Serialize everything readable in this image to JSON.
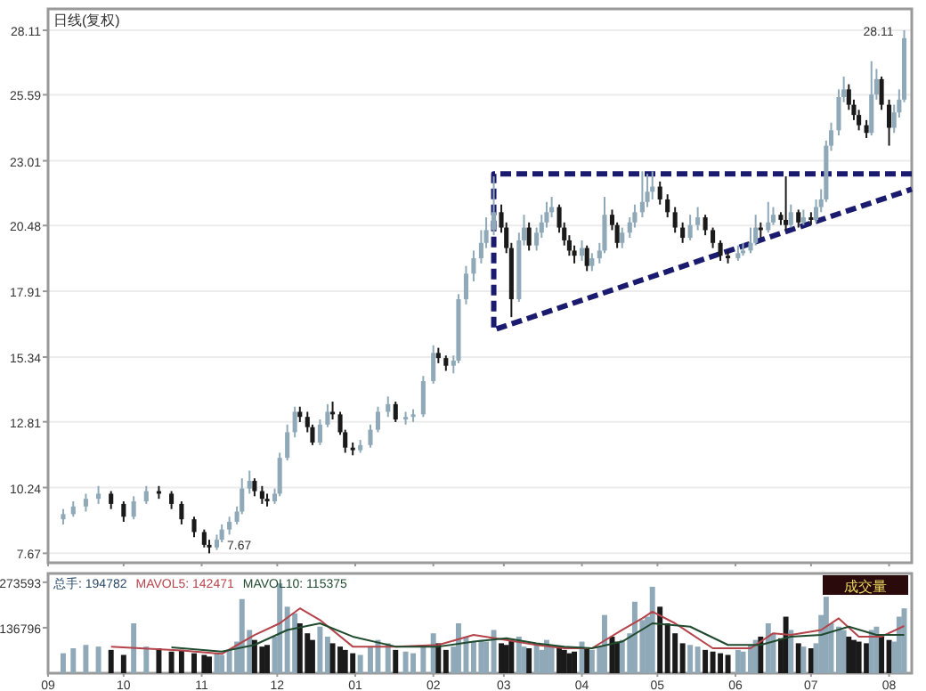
{
  "chart_data": [
    {
      "type": "candlestick",
      "title": "日线(复权)",
      "x": [
        "2009-09-07",
        "2009-09-11",
        "2009-09-16",
        "2009-09-21",
        "2009-09-26",
        "2009-10-01",
        "2009-10-05",
        "2009-10-10",
        "2009-10-15",
        "2009-10-20",
        "2009-10-24",
        "2009-10-29",
        "2009-11-02",
        "2009-11-04",
        "2009-11-07",
        "2009-11-09",
        "2009-11-12",
        "2009-11-15",
        "2009-11-17",
        "2009-11-20",
        "2009-11-22",
        "2009-11-25",
        "2009-11-27",
        "2009-11-30",
        "2009-12-02",
        "2009-12-05",
        "2009-12-08",
        "2009-12-10",
        "2009-12-13",
        "2009-12-15",
        "2009-12-18",
        "2009-12-21",
        "2009-12-23",
        "2009-12-26",
        "2009-12-28",
        "2009-12-31",
        "2010-01-03",
        "2010-01-07",
        "2010-01-10",
        "2010-01-14",
        "2010-01-17",
        "2010-01-21",
        "2010-01-24",
        "2010-01-28",
        "2010-02-01",
        "2010-02-03",
        "2010-02-06",
        "2010-02-09",
        "2010-02-11",
        "2010-02-14",
        "2010-02-17",
        "2010-02-20",
        "2010-02-22",
        "2010-02-25",
        "2010-02-28",
        "2010-03-02",
        "2010-03-04",
        "2010-03-07",
        "2010-03-09",
        "2010-03-11",
        "2010-03-14",
        "2010-03-16",
        "2010-03-18",
        "2010-03-20",
        "2010-03-23",
        "2010-03-25",
        "2010-03-27",
        "2010-03-29",
        "2010-04-01",
        "2010-04-03",
        "2010-04-05",
        "2010-04-08",
        "2010-04-10",
        "2010-04-13",
        "2010-04-15",
        "2010-04-17",
        "2010-04-20",
        "2010-04-22",
        "2010-04-25",
        "2010-04-27",
        "2010-04-29",
        "2010-05-02",
        "2010-05-05",
        "2010-05-08",
        "2010-05-11",
        "2010-05-14",
        "2010-05-17",
        "2010-05-20",
        "2010-05-23",
        "2010-05-26",
        "2010-05-29",
        "2010-06-02",
        "2010-06-04",
        "2010-06-07",
        "2010-06-09",
        "2010-06-11",
        "2010-06-14",
        "2010-06-16",
        "2010-06-19",
        "2010-06-21",
        "2010-06-23",
        "2010-06-26",
        "2010-06-28",
        "2010-07-01",
        "2010-07-03",
        "2010-07-05",
        "2010-07-07",
        "2010-07-09",
        "2010-07-12",
        "2010-07-14",
        "2010-07-16",
        "2010-07-18",
        "2010-07-20",
        "2010-07-23",
        "2010-07-25",
        "2010-07-27",
        "2010-07-29",
        "2010-08-01",
        "2010-08-03",
        "2010-08-05",
        "2010-08-07"
      ],
      "ohlc": [
        [
          9.0,
          9.4,
          8.8,
          9.2
        ],
        [
          9.2,
          9.7,
          9.1,
          9.5
        ],
        [
          9.5,
          10.0,
          9.3,
          9.8
        ],
        [
          9.8,
          10.3,
          9.6,
          10.0
        ],
        [
          10.0,
          10.1,
          9.4,
          9.6
        ],
        [
          9.6,
          9.7,
          8.9,
          9.1
        ],
        [
          9.1,
          9.9,
          9.0,
          9.7
        ],
        [
          9.7,
          10.3,
          9.6,
          10.1
        ],
        [
          10.1,
          10.3,
          9.8,
          10.0
        ],
        [
          10.0,
          10.1,
          9.4,
          9.6
        ],
        [
          9.6,
          9.7,
          8.8,
          9.0
        ],
        [
          9.0,
          9.1,
          8.3,
          8.5
        ],
        [
          8.5,
          8.6,
          7.9,
          8.0
        ],
        [
          8.0,
          8.2,
          7.67,
          7.9
        ],
        [
          7.9,
          8.4,
          7.8,
          8.2
        ],
        [
          8.2,
          8.8,
          8.1,
          8.6
        ],
        [
          8.6,
          9.1,
          8.4,
          8.9
        ],
        [
          8.9,
          9.5,
          8.8,
          9.3
        ],
        [
          9.3,
          10.6,
          9.2,
          10.2
        ],
        [
          10.2,
          10.9,
          10.0,
          10.5
        ],
        [
          10.5,
          10.6,
          9.9,
          10.1
        ],
        [
          10.1,
          10.3,
          9.6,
          9.8
        ],
        [
          9.8,
          10.0,
          9.5,
          9.7
        ],
        [
          9.7,
          10.2,
          9.6,
          10.0
        ],
        [
          10.0,
          11.6,
          9.9,
          11.4
        ],
        [
          11.4,
          12.7,
          11.3,
          12.4
        ],
        [
          12.4,
          13.4,
          12.2,
          13.2
        ],
        [
          13.2,
          13.4,
          12.8,
          13.0
        ],
        [
          13.0,
          13.2,
          12.4,
          12.6
        ],
        [
          12.6,
          12.7,
          11.9,
          12.0
        ],
        [
          12.0,
          12.9,
          11.9,
          12.7
        ],
        [
          12.7,
          13.5,
          12.6,
          13.2
        ],
        [
          13.2,
          13.6,
          12.9,
          13.1
        ],
        [
          13.1,
          13.2,
          12.3,
          12.4
        ],
        [
          12.4,
          12.5,
          11.6,
          11.8
        ],
        [
          11.8,
          12.0,
          11.5,
          11.7
        ],
        [
          11.7,
          12.1,
          11.6,
          11.9
        ],
        [
          11.9,
          12.7,
          11.8,
          12.5
        ],
        [
          12.5,
          13.4,
          12.4,
          13.2
        ],
        [
          13.2,
          13.8,
          13.0,
          13.5
        ],
        [
          13.5,
          13.6,
          12.8,
          12.9
        ],
        [
          12.9,
          13.2,
          12.7,
          13.0
        ],
        [
          13.0,
          13.3,
          12.8,
          13.1
        ],
        [
          13.1,
          14.6,
          13.0,
          14.4
        ],
        [
          14.4,
          15.8,
          14.3,
          15.5
        ],
        [
          15.5,
          15.7,
          15.1,
          15.3
        ],
        [
          15.3,
          15.4,
          14.8,
          15.0
        ],
        [
          15.0,
          15.4,
          14.7,
          15.2
        ],
        [
          15.2,
          17.8,
          15.1,
          17.6
        ],
        [
          17.6,
          18.9,
          17.4,
          18.6
        ],
        [
          18.6,
          19.5,
          18.3,
          19.2
        ],
        [
          19.2,
          20.3,
          19.0,
          19.8
        ],
        [
          19.8,
          20.8,
          19.6,
          20.3
        ],
        [
          20.3,
          22.4,
          20.1,
          21.0
        ],
        [
          21.0,
          21.3,
          20.2,
          20.4
        ],
        [
          20.4,
          20.6,
          19.4,
          19.6
        ],
        [
          19.6,
          19.8,
          16.9,
          17.6
        ],
        [
          17.6,
          20.2,
          17.5,
          19.9
        ],
        [
          19.9,
          20.9,
          19.7,
          20.4
        ],
        [
          20.4,
          20.6,
          19.5,
          19.7
        ],
        [
          19.7,
          20.4,
          19.5,
          20.2
        ],
        [
          20.2,
          20.9,
          20.0,
          20.6
        ],
        [
          20.6,
          21.4,
          20.4,
          21.0
        ],
        [
          21.0,
          21.6,
          20.8,
          21.2
        ],
        [
          21.2,
          21.3,
          20.2,
          20.4
        ],
        [
          20.4,
          20.6,
          19.7,
          19.9
        ],
        [
          19.9,
          20.1,
          19.3,
          19.5
        ],
        [
          19.5,
          19.7,
          19.0,
          19.3
        ],
        [
          19.3,
          19.9,
          19.1,
          19.6
        ],
        [
          19.6,
          19.7,
          18.7,
          18.9
        ],
        [
          18.9,
          19.4,
          18.7,
          19.2
        ],
        [
          19.2,
          19.8,
          19.0,
          19.5
        ],
        [
          19.5,
          21.6,
          19.4,
          20.9
        ],
        [
          20.9,
          21.1,
          20.3,
          20.5
        ],
        [
          20.5,
          20.6,
          19.6,
          19.8
        ],
        [
          19.8,
          20.4,
          19.6,
          20.2
        ],
        [
          20.2,
          20.8,
          20.0,
          20.6
        ],
        [
          20.6,
          21.3,
          20.4,
          21.0
        ],
        [
          21.0,
          22.6,
          20.8,
          21.4
        ],
        [
          21.4,
          22.5,
          21.2,
          21.8
        ],
        [
          21.8,
          22.6,
          21.5,
          22.0
        ],
        [
          22.0,
          22.2,
          21.3,
          21.5
        ],
        [
          21.5,
          21.7,
          20.8,
          21.0
        ],
        [
          21.0,
          21.2,
          20.2,
          20.4
        ],
        [
          20.4,
          20.6,
          19.8,
          20.0
        ],
        [
          20.0,
          20.9,
          19.9,
          20.5
        ],
        [
          20.5,
          21.2,
          20.3,
          20.8
        ],
        [
          20.8,
          20.9,
          20.1,
          20.3
        ],
        [
          20.3,
          20.4,
          19.6,
          19.8
        ],
        [
          19.8,
          19.9,
          19.1,
          19.3
        ],
        [
          19.3,
          19.5,
          19.0,
          19.2
        ],
        [
          19.2,
          19.7,
          19.1,
          19.4
        ],
        [
          19.4,
          19.8,
          19.3,
          19.5
        ],
        [
          19.5,
          20.4,
          19.4,
          19.8
        ],
        [
          19.8,
          20.9,
          19.7,
          20.4
        ],
        [
          20.4,
          20.6,
          20.0,
          20.3
        ],
        [
          20.3,
          21.4,
          20.2,
          20.6
        ],
        [
          20.6,
          21.2,
          20.5,
          20.9
        ],
        [
          20.9,
          21.0,
          20.5,
          20.7
        ],
        [
          20.7,
          22.4,
          20.3,
          20.5
        ],
        [
          20.5,
          21.3,
          20.4,
          21.0
        ],
        [
          21.0,
          21.1,
          20.4,
          20.6
        ],
        [
          20.6,
          21.1,
          20.5,
          20.8
        ],
        [
          20.8,
          21.0,
          20.5,
          20.7
        ],
        [
          20.7,
          21.5,
          20.6,
          21.2
        ],
        [
          21.2,
          21.9,
          21.0,
          21.5
        ],
        [
          21.5,
          23.8,
          21.4,
          23.6
        ],
        [
          23.6,
          24.5,
          23.4,
          24.2
        ],
        [
          24.2,
          25.8,
          24.0,
          25.5
        ],
        [
          25.5,
          26.3,
          25.3,
          25.8
        ],
        [
          25.8,
          26.0,
          25.0,
          25.2
        ],
        [
          25.2,
          25.4,
          24.6,
          24.8
        ],
        [
          24.8,
          25.0,
          24.2,
          24.4
        ],
        [
          24.4,
          24.6,
          23.9,
          24.1
        ],
        [
          24.1,
          26.9,
          24.0,
          25.6
        ],
        [
          25.6,
          26.6,
          25.4,
          26.2
        ],
        [
          26.2,
          26.3,
          25.0,
          25.2
        ],
        [
          25.2,
          25.4,
          23.6,
          24.3
        ],
        [
          24.3,
          25.2,
          24.1,
          24.9
        ],
        [
          24.9,
          25.8,
          24.7,
          25.4
        ],
        [
          25.4,
          28.11,
          25.3,
          27.8
        ]
      ],
      "colors": [
        "#8fa9b8",
        "#8fa9b8",
        "#8fa9b8",
        "#8fa9b8",
        "#1a1a1a",
        "#1a1a1a",
        "#8fa9b8",
        "#8fa9b8",
        "#1a1a1a",
        "#1a1a1a",
        "#1a1a1a",
        "#1a1a1a",
        "#1a1a1a",
        "#1a1a1a",
        "#8fa9b8",
        "#8fa9b8",
        "#8fa9b8",
        "#8fa9b8",
        "#8fa9b8",
        "#8fa9b8",
        "#1a1a1a",
        "#1a1a1a",
        "#1a1a1a",
        "#8fa9b8",
        "#8fa9b8",
        "#8fa9b8",
        "#8fa9b8",
        "#1a1a1a",
        "#1a1a1a",
        "#1a1a1a",
        "#8fa9b8",
        "#8fa9b8",
        "#1a1a1a",
        "#1a1a1a",
        "#1a1a1a",
        "#1a1a1a",
        "#8fa9b8",
        "#8fa9b8",
        "#8fa9b8",
        "#8fa9b8",
        "#1a1a1a",
        "#8fa9b8",
        "#8fa9b8",
        "#8fa9b8",
        "#8fa9b8",
        "#1a1a1a",
        "#1a1a1a",
        "#8fa9b8",
        "#8fa9b8",
        "#8fa9b8",
        "#8fa9b8",
        "#8fa9b8",
        "#8fa9b8",
        "#8fa9b8",
        "#1a1a1a",
        "#1a1a1a",
        "#1a1a1a",
        "#8fa9b8",
        "#8fa9b8",
        "#1a1a1a",
        "#8fa9b8",
        "#8fa9b8",
        "#8fa9b8",
        "#8fa9b8",
        "#1a1a1a",
        "#1a1a1a",
        "#1a1a1a",
        "#1a1a1a",
        "#8fa9b8",
        "#1a1a1a",
        "#8fa9b8",
        "#8fa9b8",
        "#8fa9b8",
        "#1a1a1a",
        "#1a1a1a",
        "#8fa9b8",
        "#8fa9b8",
        "#8fa9b8",
        "#8fa9b8",
        "#8fa9b8",
        "#8fa9b8",
        "#1a1a1a",
        "#1a1a1a",
        "#1a1a1a",
        "#1a1a1a",
        "#8fa9b8",
        "#8fa9b8",
        "#1a1a1a",
        "#1a1a1a",
        "#1a1a1a",
        "#1a1a1a",
        "#8fa9b8",
        "#8fa9b8",
        "#8fa9b8",
        "#8fa9b8",
        "#1a1a1a",
        "#8fa9b8",
        "#8fa9b8",
        "#1a1a1a",
        "#1a1a1a",
        "#8fa9b8",
        "#1a1a1a",
        "#8fa9b8",
        "#1a1a1a",
        "#8fa9b8",
        "#8fa9b8",
        "#8fa9b8",
        "#8fa9b8",
        "#8fa9b8",
        "#8fa9b8",
        "#1a1a1a",
        "#1a1a1a",
        "#1a1a1a",
        "#1a1a1a",
        "#8fa9b8",
        "#8fa9b8",
        "#1a1a1a",
        "#1a1a1a",
        "#8fa9b8",
        "#8fa9b8",
        "#8fa9b8"
      ],
      "series": [
        {
          "type": "line",
          "color": "#1a1a6e",
          "line_style": "dashed",
          "x": [
            "2010-08-10",
            "2010-02-25",
            "2010-02-25",
            "2010-08-10"
          ],
          "values": [
            22.5,
            22.5,
            16.4,
            21.9
          ]
        }
      ],
      "annotations": [
        {
          "text": "28.11",
          "x": "2010-08-07",
          "y": 28.11
        },
        {
          "text": "7.67",
          "x": "2009-11-04",
          "y": 7.67
        }
      ],
      "xlim": [
        "2009-09-01",
        "2010-08-10"
      ],
      "ylim": [
        7.3,
        28.11
      ],
      "xticks": [
        {
          "value": "2009-09-01",
          "label": null
        },
        {
          "value": "2009-10-01",
          "label": null
        },
        {
          "value": "2009-11-01",
          "label": null
        },
        {
          "value": "2009-12-01",
          "label": null
        },
        {
          "value": "2010-01-01",
          "label": null
        },
        {
          "value": "2010-02-01",
          "label": null
        },
        {
          "value": "2010-03-01",
          "label": null
        },
        {
          "value": "2010-04-01",
          "label": null
        },
        {
          "value": "2010-05-01",
          "label": null
        },
        {
          "value": "2010-06-01",
          "label": null
        },
        {
          "value": "2010-07-01",
          "label": null
        },
        {
          "value": "2010-08-01",
          "label": null
        }
      ],
      "yticks": [
        7.67,
        10.24,
        12.81,
        15.34,
        17.91,
        20.48,
        23.01,
        25.59,
        28.11
      ],
      "tick_labels": "y",
      "grid": "y"
    },
    {
      "type": "bar",
      "legend": "top left",
      "annotations": [
        "成交量"
      ],
      "xlim": [
        "2009-09-01",
        "2010-08-10"
      ],
      "ylim": [
        0,
        300000
      ],
      "yticks": [
        136796,
        273593
      ],
      "xticks": [
        {
          "value": "2009-09-01",
          "label": "09"
        },
        {
          "value": "2009-10-01",
          "label": "10"
        },
        {
          "value": "2009-11-01",
          "label": "11"
        },
        {
          "value": "2009-12-01",
          "label": "12"
        },
        {
          "value": "2010-01-01",
          "label": "01"
        },
        {
          "value": "2010-02-01",
          "label": "02"
        },
        {
          "value": "2010-03-01",
          "label": "03"
        },
        {
          "value": "2010-04-01",
          "label": "04"
        },
        {
          "value": "2010-05-01",
          "label": "05"
        },
        {
          "value": "2010-06-01",
          "label": "06"
        },
        {
          "value": "2010-07-01",
          "label": "07"
        },
        {
          "value": "2010-08-01",
          "label": "08"
        }
      ],
      "series": [
        {
          "type": "bar",
          "name": "总手: 194782",
          "color": "#2a4a6a",
          "x": [
            "2009-09-07",
            "2009-09-11",
            "2009-09-16",
            "2009-09-21",
            "2009-09-26",
            "2009-10-01",
            "2009-10-05",
            "2009-10-10",
            "2009-10-15",
            "2009-10-20",
            "2009-10-24",
            "2009-10-29",
            "2009-11-02",
            "2009-11-04",
            "2009-11-07",
            "2009-11-09",
            "2009-11-12",
            "2009-11-15",
            "2009-11-17",
            "2009-11-20",
            "2009-11-22",
            "2009-11-25",
            "2009-11-27",
            "2009-11-30",
            "2009-12-02",
            "2009-12-05",
            "2009-12-08",
            "2009-12-10",
            "2009-12-13",
            "2009-12-15",
            "2009-12-18",
            "2009-12-21",
            "2009-12-23",
            "2009-12-26",
            "2009-12-28",
            "2009-12-31",
            "2010-01-03",
            "2010-01-07",
            "2010-01-10",
            "2010-01-14",
            "2010-01-17",
            "2010-01-21",
            "2010-01-24",
            "2010-01-28",
            "2010-02-01",
            "2010-02-03",
            "2010-02-06",
            "2010-02-09",
            "2010-02-11",
            "2010-02-14",
            "2010-02-17",
            "2010-02-20",
            "2010-02-22",
            "2010-02-25",
            "2010-02-28",
            "2010-03-02",
            "2010-03-04",
            "2010-03-07",
            "2010-03-09",
            "2010-03-11",
            "2010-03-14",
            "2010-03-16",
            "2010-03-18",
            "2010-03-20",
            "2010-03-23",
            "2010-03-25",
            "2010-03-27",
            "2010-03-29",
            "2010-04-01",
            "2010-04-03",
            "2010-04-05",
            "2010-04-08",
            "2010-04-10",
            "2010-04-13",
            "2010-04-15",
            "2010-04-17",
            "2010-04-20",
            "2010-04-22",
            "2010-04-25",
            "2010-04-27",
            "2010-04-29",
            "2010-05-02",
            "2010-05-05",
            "2010-05-08",
            "2010-05-11",
            "2010-05-14",
            "2010-05-17",
            "2010-05-20",
            "2010-05-23",
            "2010-05-26",
            "2010-05-29",
            "2010-06-02",
            "2010-06-04",
            "2010-06-07",
            "2010-06-09",
            "2010-06-11",
            "2010-06-14",
            "2010-06-16",
            "2010-06-19",
            "2010-06-21",
            "2010-06-23",
            "2010-06-26",
            "2010-06-28",
            "2010-07-01",
            "2010-07-03",
            "2010-07-05",
            "2010-07-07",
            "2010-07-09",
            "2010-07-12",
            "2010-07-14",
            "2010-07-16",
            "2010-07-18",
            "2010-07-20",
            "2010-07-23",
            "2010-07-25",
            "2010-07-27",
            "2010-07-29",
            "2010-08-01",
            "2010-08-03",
            "2010-08-05",
            "2010-08-07"
          ],
          "values": [
            60000,
            75000,
            85000,
            80000,
            70000,
            55000,
            150000,
            80000,
            75000,
            65000,
            70000,
            60000,
            55000,
            50000,
            60000,
            55000,
            70000,
            95000,
            223000,
            130000,
            100000,
            80000,
            85000,
            110000,
            270000,
            200000,
            180000,
            150000,
            120000,
            100000,
            140000,
            110000,
            90000,
            80000,
            70000,
            60000,
            55000,
            80000,
            100000,
            90000,
            70000,
            65000,
            60000,
            80000,
            120000,
            90000,
            70000,
            80000,
            150000,
            110000,
            95000,
            100000,
            95000,
            130000,
            90000,
            85000,
            100000,
            110000,
            80000,
            75000,
            90000,
            70000,
            100000,
            85000,
            80000,
            70000,
            60000,
            65000,
            95000,
            75000,
            70000,
            80000,
            175000,
            110000,
            95000,
            100000,
            120000,
            215000,
            160000,
            170000,
            260000,
            200000,
            150000,
            120000,
            90000,
            85000,
            80000,
            70000,
            65000,
            60000,
            55000,
            70000,
            65000,
            85000,
            100000,
            110000,
            150000,
            120000,
            105000,
            170000,
            130000,
            90000,
            80000,
            75000,
            90000,
            175000,
            230000,
            150000,
            140000,
            130000,
            110000,
            100000,
            95000,
            90000,
            130000,
            140000,
            110000,
            100000,
            95000,
            170000,
            195000
          ],
          "colors": [
            "#8fa9b8",
            "#8fa9b8",
            "#8fa9b8",
            "#8fa9b8",
            "#1a1a1a",
            "#1a1a1a",
            "#8fa9b8",
            "#8fa9b8",
            "#1a1a1a",
            "#1a1a1a",
            "#1a1a1a",
            "#1a1a1a",
            "#1a1a1a",
            "#1a1a1a",
            "#8fa9b8",
            "#8fa9b8",
            "#8fa9b8",
            "#8fa9b8",
            "#8fa9b8",
            "#8fa9b8",
            "#1a1a1a",
            "#1a1a1a",
            "#1a1a1a",
            "#8fa9b8",
            "#8fa9b8",
            "#8fa9b8",
            "#8fa9b8",
            "#1a1a1a",
            "#1a1a1a",
            "#1a1a1a",
            "#8fa9b8",
            "#8fa9b8",
            "#1a1a1a",
            "#1a1a1a",
            "#1a1a1a",
            "#1a1a1a",
            "#8fa9b8",
            "#8fa9b8",
            "#8fa9b8",
            "#8fa9b8",
            "#1a1a1a",
            "#8fa9b8",
            "#8fa9b8",
            "#8fa9b8",
            "#8fa9b8",
            "#1a1a1a",
            "#1a1a1a",
            "#8fa9b8",
            "#8fa9b8",
            "#8fa9b8",
            "#8fa9b8",
            "#8fa9b8",
            "#8fa9b8",
            "#8fa9b8",
            "#1a1a1a",
            "#1a1a1a",
            "#1a1a1a",
            "#8fa9b8",
            "#8fa9b8",
            "#1a1a1a",
            "#8fa9b8",
            "#8fa9b8",
            "#8fa9b8",
            "#8fa9b8",
            "#1a1a1a",
            "#1a1a1a",
            "#1a1a1a",
            "#1a1a1a",
            "#8fa9b8",
            "#1a1a1a",
            "#8fa9b8",
            "#8fa9b8",
            "#8fa9b8",
            "#1a1a1a",
            "#1a1a1a",
            "#8fa9b8",
            "#8fa9b8",
            "#8fa9b8",
            "#8fa9b8",
            "#8fa9b8",
            "#8fa9b8",
            "#1a1a1a",
            "#1a1a1a",
            "#1a1a1a",
            "#1a1a1a",
            "#8fa9b8",
            "#8fa9b8",
            "#1a1a1a",
            "#1a1a1a",
            "#1a1a1a",
            "#1a1a1a",
            "#8fa9b8",
            "#8fa9b8",
            "#8fa9b8",
            "#8fa9b8",
            "#1a1a1a",
            "#8fa9b8",
            "#8fa9b8",
            "#1a1a1a",
            "#1a1a1a",
            "#8fa9b8",
            "#1a1a1a",
            "#8fa9b8",
            "#1a1a1a",
            "#8fa9b8",
            "#8fa9b8",
            "#8fa9b8",
            "#8fa9b8",
            "#8fa9b8",
            "#8fa9b8",
            "#1a1a1a",
            "#1a1a1a",
            "#1a1a1a",
            "#1a1a1a",
            "#8fa9b8",
            "#8fa9b8",
            "#1a1a1a",
            "#1a1a1a",
            "#8fa9b8",
            "#8fa9b8",
            "#8fa9b8"
          ]
        },
        {
          "type": "line",
          "name": "MAVOL5: 142471",
          "color": "#b5434a",
          "x": [
            "2009-09-26",
            "2009-10-24",
            "2009-11-09",
            "2009-11-22",
            "2009-12-02",
            "2009-12-10",
            "2009-12-18",
            "2009-12-31",
            "2010-01-17",
            "2010-02-03",
            "2010-02-17",
            "2010-03-02",
            "2010-03-14",
            "2010-03-25",
            "2010-04-05",
            "2010-04-17",
            "2010-04-25",
            "2010-04-29",
            "2010-05-08",
            "2010-05-23",
            "2010-06-07",
            "2010-06-16",
            "2010-06-23",
            "2010-07-05",
            "2010-07-12",
            "2010-07-20",
            "2010-07-29",
            "2010-08-07"
          ],
          "values": [
            80000,
            68000,
            58000,
            115000,
            150000,
            195000,
            160000,
            80000,
            80000,
            85000,
            115000,
            100000,
            85000,
            75000,
            75000,
            130000,
            165000,
            185000,
            150000,
            75000,
            75000,
            120000,
            115000,
            130000,
            165000,
            110000,
            110000,
            142000
          ]
        },
        {
          "type": "line",
          "name": "MAVOL10: 115375",
          "color": "#1f4a2e",
          "x": [
            "2009-10-20",
            "2009-11-09",
            "2009-11-22",
            "2009-12-05",
            "2009-12-18",
            "2009-12-31",
            "2010-01-17",
            "2010-02-03",
            "2010-02-17",
            "2010-03-02",
            "2010-03-14",
            "2010-03-25",
            "2010-04-05",
            "2010-04-17",
            "2010-04-29",
            "2010-05-14",
            "2010-05-29",
            "2010-06-11",
            "2010-06-23",
            "2010-07-05",
            "2010-07-16",
            "2010-07-27",
            "2010-08-07"
          ],
          "values": [
            78000,
            65000,
            85000,
            130000,
            150000,
            110000,
            80000,
            80000,
            95000,
            105000,
            90000,
            80000,
            75000,
            95000,
            150000,
            140000,
            85000,
            85000,
            110000,
            115000,
            140000,
            115000,
            115000
          ]
        }
      ]
    }
  ]
}
